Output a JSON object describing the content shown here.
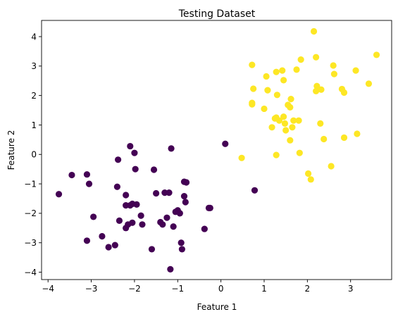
{
  "chart_data": {
    "type": "scatter",
    "title": "Testing Dataset",
    "xlabel": "Feature 1",
    "ylabel": "Feature 2",
    "xlim": [
      -4.15,
      3.95
    ],
    "ylim": [
      -4.25,
      4.55
    ],
    "xticks": [
      -4,
      -3,
      -2,
      -1,
      0,
      1,
      2,
      3
    ],
    "yticks": [
      -4,
      -3,
      -2,
      -1,
      0,
      1,
      2,
      3,
      4
    ],
    "xtick_labels": [
      "−4",
      "−3",
      "−2",
      "−1",
      "0",
      "1",
      "2",
      "3"
    ],
    "ytick_labels": [
      "−4",
      "−3",
      "−2",
      "−1",
      "0",
      "1",
      "2",
      "3",
      "4"
    ],
    "grid": false,
    "series": [
      {
        "color": "#440154",
        "points": [
          [
            -3.75,
            -1.35
          ],
          [
            -3.45,
            -0.7
          ],
          [
            -3.1,
            -0.68
          ],
          [
            -3.05,
            -1.0
          ],
          [
            -2.95,
            -2.12
          ],
          [
            -3.1,
            -2.93
          ],
          [
            -2.75,
            -2.78
          ],
          [
            -2.6,
            -3.15
          ],
          [
            -2.45,
            -3.08
          ],
          [
            -2.4,
            -1.1
          ],
          [
            -2.38,
            -0.18
          ],
          [
            -2.35,
            -2.25
          ],
          [
            -2.2,
            -2.5
          ],
          [
            -2.15,
            -2.38
          ],
          [
            -2.2,
            -1.38
          ],
          [
            -2.2,
            -1.73
          ],
          [
            -2.1,
            -1.73
          ],
          [
            -2.05,
            -1.68
          ],
          [
            -1.95,
            -1.7
          ],
          [
            -2.1,
            0.28
          ],
          [
            -2.0,
            0.05
          ],
          [
            -1.98,
            -0.5
          ],
          [
            -2.05,
            -2.32
          ],
          [
            -1.85,
            -2.08
          ],
          [
            -1.82,
            -2.38
          ],
          [
            -1.55,
            -0.52
          ],
          [
            -1.5,
            -1.32
          ],
          [
            -1.6,
            -3.22
          ],
          [
            -1.4,
            -2.3
          ],
          [
            -1.35,
            -2.38
          ],
          [
            -1.3,
            -1.3
          ],
          [
            -1.25,
            -2.15
          ],
          [
            -1.2,
            -1.3
          ],
          [
            -1.15,
            0.2
          ],
          [
            -1.1,
            -2.45
          ],
          [
            -1.05,
            -1.95
          ],
          [
            -1.0,
            -1.9
          ],
          [
            -0.95,
            -2.0
          ],
          [
            -0.92,
            -3.0
          ],
          [
            -0.9,
            -3.22
          ],
          [
            -0.85,
            -0.93
          ],
          [
            -0.8,
            -0.95
          ],
          [
            -0.85,
            -1.42
          ],
          [
            -0.82,
            -1.62
          ],
          [
            -1.17,
            -3.9
          ],
          [
            -0.38,
            -2.53
          ],
          [
            -0.28,
            -1.82
          ],
          [
            -0.25,
            -1.82
          ],
          [
            0.1,
            0.36
          ],
          [
            0.78,
            -1.22
          ]
        ]
      },
      {
        "color": "#fde725",
        "points": [
          [
            2.15,
            4.18
          ],
          [
            0.72,
            3.04
          ],
          [
            0.75,
            2.23
          ],
          [
            0.72,
            1.7
          ],
          [
            0.72,
            1.75
          ],
          [
            1.05,
            2.65
          ],
          [
            1.08,
            2.18
          ],
          [
            1.28,
            2.8
          ],
          [
            1.3,
            2.02
          ],
          [
            1.42,
            2.85
          ],
          [
            1.45,
            2.52
          ],
          [
            1.55,
            1.68
          ],
          [
            1.6,
            1.6
          ],
          [
            1.62,
            1.88
          ],
          [
            1.75,
            2.88
          ],
          [
            1.85,
            3.22
          ],
          [
            2.2,
            3.3
          ],
          [
            2.22,
            2.32
          ],
          [
            2.2,
            2.15
          ],
          [
            2.32,
            2.2
          ],
          [
            2.6,
            3.02
          ],
          [
            2.62,
            2.73
          ],
          [
            2.8,
            2.22
          ],
          [
            2.85,
            2.1
          ],
          [
            3.12,
            2.85
          ],
          [
            3.6,
            3.38
          ],
          [
            3.42,
            2.4
          ],
          [
            1.0,
            1.55
          ],
          [
            1.18,
            0.92
          ],
          [
            1.25,
            1.22
          ],
          [
            1.28,
            1.25
          ],
          [
            1.35,
            1.15
          ],
          [
            1.45,
            1.28
          ],
          [
            1.48,
            1.05
          ],
          [
            1.5,
            0.82
          ],
          [
            1.65,
            0.92
          ],
          [
            1.68,
            1.15
          ],
          [
            1.8,
            1.15
          ],
          [
            2.3,
            1.05
          ],
          [
            1.6,
            0.48
          ],
          [
            1.82,
            0.05
          ],
          [
            1.28,
            -0.02
          ],
          [
            2.38,
            0.52
          ],
          [
            2.85,
            0.57
          ],
          [
            3.15,
            0.7
          ],
          [
            0.48,
            -0.12
          ],
          [
            2.02,
            -0.65
          ],
          [
            2.08,
            -0.85
          ],
          [
            2.55,
            -0.4
          ]
        ]
      }
    ]
  }
}
